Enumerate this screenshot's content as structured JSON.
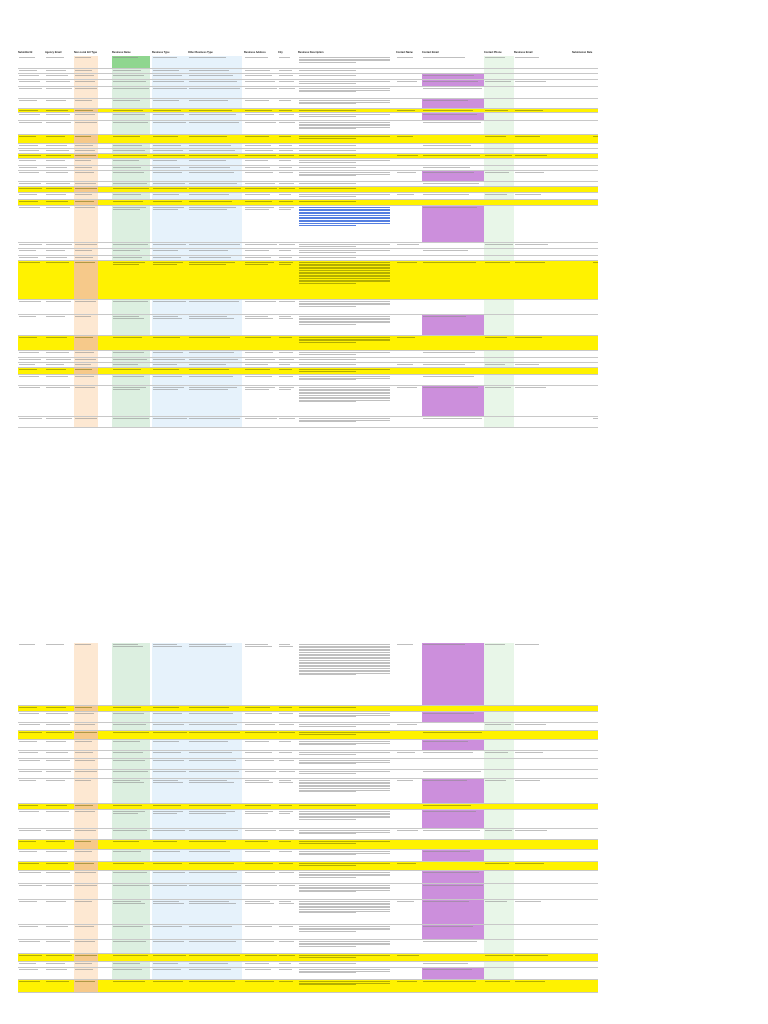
{
  "columns": [
    "Submittal Id",
    "Agency Email",
    "Non-Local Intl Type",
    "Business Name",
    "Business Type",
    "Other Business Type",
    "Business Address",
    "City",
    "Business Description",
    "Contact Name",
    "Contact Email",
    "Contact Phone",
    "Business Email",
    "Submission Date"
  ],
  "sheet_top_rows": [
    {
      "h": 12,
      "hl": false,
      "name_green": true,
      "email_purple": false,
      "lines": 4
    },
    {
      "h": 4,
      "hl": false,
      "lines": 1
    },
    {
      "h": 5,
      "hl": false,
      "email_purple": true,
      "lines": 1
    },
    {
      "h": 6,
      "hl": false,
      "email_purple": true,
      "lines": 2
    },
    {
      "h": 11,
      "hl": false,
      "lines": 3
    },
    {
      "h": 9,
      "hl": false,
      "email_purple": true,
      "lines": 3
    },
    {
      "h": 3,
      "hl": true,
      "lines": 1
    },
    {
      "h": 7,
      "hl": false,
      "email_purple": true,
      "lines": 2
    },
    {
      "h": 13,
      "hl": false,
      "lines": 5
    },
    {
      "h": 8,
      "hl": true,
      "lines": 2,
      "extra": "1"
    },
    {
      "h": 4,
      "hl": false,
      "lines": 1
    },
    {
      "h": 4,
      "hl": false,
      "lines": 1
    },
    {
      "h": 4,
      "hl": true,
      "lines": 1
    },
    {
      "h": 6,
      "hl": false,
      "lines": 2
    },
    {
      "h": 4,
      "hl": false,
      "lines": 1
    },
    {
      "h": 10,
      "hl": false,
      "email_purple": true,
      "lines": 3
    },
    {
      "h": 4,
      "hl": false,
      "lines": 1
    },
    {
      "h": 5,
      "hl": true,
      "lines": 1
    },
    {
      "h": 6,
      "hl": false,
      "lines": 2
    },
    {
      "h": 5,
      "hl": true,
      "lines": 1
    },
    {
      "h": 36,
      "hl": false,
      "email_purple": true,
      "lines": 12,
      "link": true
    },
    {
      "h": 5,
      "hl": false,
      "lines": 2
    },
    {
      "h": 6,
      "hl": false,
      "lines": 2
    },
    {
      "h": 4,
      "hl": false,
      "lines": 1
    },
    {
      "h": 38,
      "hl": true,
      "lines": 14,
      "extra": "1"
    },
    {
      "h": 14,
      "hl": false,
      "lines": 4
    },
    {
      "h": 20,
      "hl": false,
      "email_purple": true,
      "lines": 6
    },
    {
      "h": 14,
      "hl": true,
      "lines": 4
    },
    {
      "h": 6,
      "hl": false,
      "lines": 2
    },
    {
      "h": 4,
      "hl": false,
      "lines": 1
    },
    {
      "h": 4,
      "hl": false,
      "lines": 1
    },
    {
      "h": 6,
      "hl": true,
      "lines": 2
    },
    {
      "h": 10,
      "hl": false,
      "lines": 3
    },
    {
      "h": 30,
      "hl": false,
      "email_purple": true,
      "lines": 10
    },
    {
      "h": 10,
      "hl": false,
      "lines": 3,
      "extra": "1"
    }
  ],
  "sheet_bottom_rows": [
    {
      "h": 62,
      "hl": false,
      "email_purple": true,
      "lines": 20
    },
    {
      "h": 5,
      "hl": true,
      "lines": 1
    },
    {
      "h": 10,
      "hl": false,
      "email_purple": true,
      "lines": 3
    },
    {
      "h": 7,
      "hl": false,
      "lines": 2
    },
    {
      "h": 8,
      "hl": true,
      "lines": 2
    },
    {
      "h": 10,
      "hl": false,
      "email_purple": true,
      "lines": 3
    },
    {
      "h": 7,
      "hl": false,
      "lines": 2
    },
    {
      "h": 10,
      "hl": false,
      "lines": 3
    },
    {
      "h": 8,
      "hl": false,
      "lines": 2
    },
    {
      "h": 24,
      "hl": false,
      "email_purple": true,
      "lines": 8
    },
    {
      "h": 5,
      "hl": true,
      "lines": 1
    },
    {
      "h": 18,
      "hl": false,
      "email_purple": true,
      "lines": 6
    },
    {
      "h": 10,
      "hl": false,
      "lines": 3
    },
    {
      "h": 9,
      "hl": true,
      "lines": 2
    },
    {
      "h": 11,
      "hl": false,
      "email_purple": true,
      "lines": 3
    },
    {
      "h": 8,
      "hl": true,
      "lines": 2
    },
    {
      "h": 12,
      "hl": false,
      "email_purple": true,
      "lines": 4
    },
    {
      "h": 15,
      "hl": false,
      "email_purple": true,
      "lines": 5
    },
    {
      "h": 24,
      "hl": false,
      "email_purple": true,
      "lines": 8
    },
    {
      "h": 14,
      "hl": false,
      "email_purple": true,
      "lines": 4
    },
    {
      "h": 13,
      "hl": false,
      "lines": 4
    },
    {
      "h": 7,
      "hl": true,
      "lines": 2
    },
    {
      "h": 5,
      "hl": false,
      "lines": 1
    },
    {
      "h": 11,
      "hl": false,
      "email_purple": true,
      "lines": 3
    },
    {
      "h": 12,
      "hl": true,
      "lines": 3
    }
  ]
}
